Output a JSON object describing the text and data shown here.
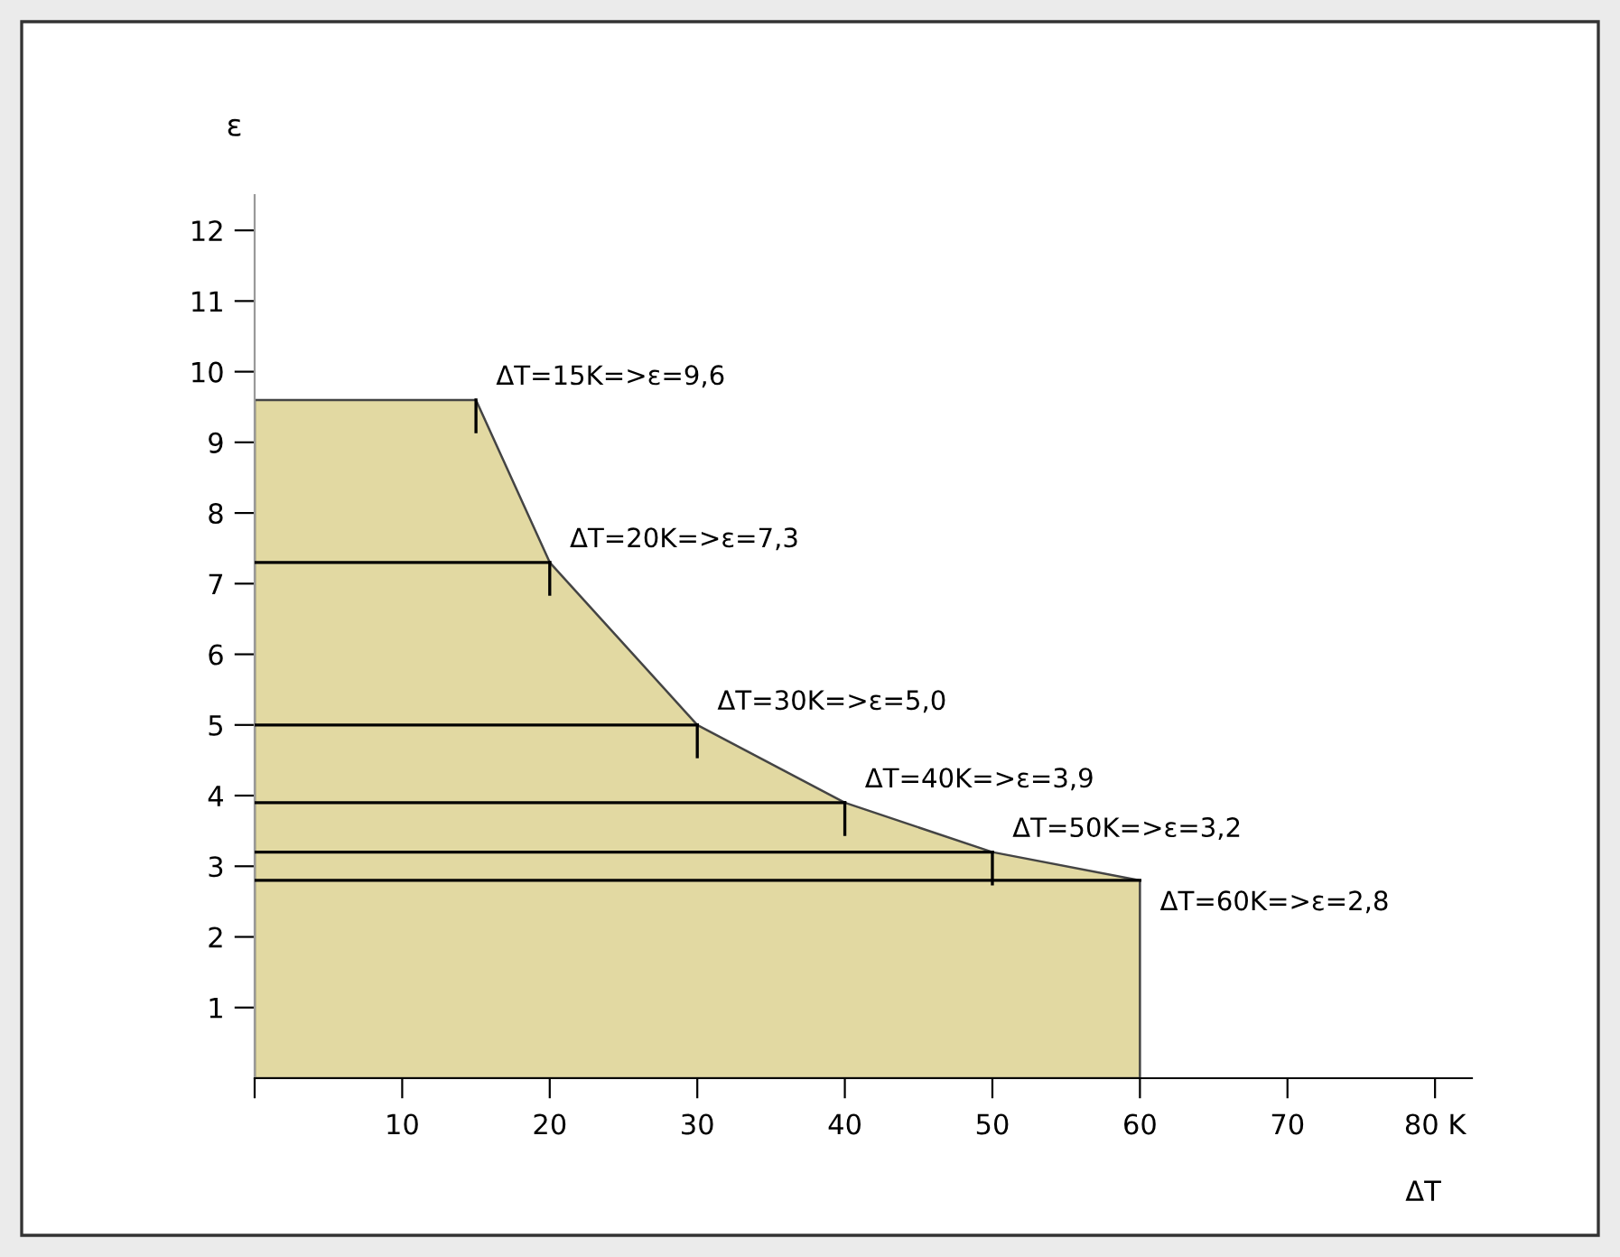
{
  "chart_data": {
    "type": "area",
    "xlabel": "ΔT",
    "ylabel": "ε",
    "x": [
      0,
      15,
      20,
      30,
      40,
      50,
      60
    ],
    "series": [
      {
        "color": "#e2d9a2",
        "values": [
          9.6,
          9.6,
          7.3,
          5.0,
          3.9,
          3.2,
          2.8
        ],
        "errors": [
          null,
          [
            9.15,
            9.6
          ],
          [
            6.85,
            7.3
          ],
          [
            4.55,
            5.0
          ],
          [
            3.45,
            3.9
          ],
          [
            2.75,
            3.2
          ],
          null
        ]
      },
      {
        "type": "line",
        "color": "#000000",
        "x": [
          0,
          20
        ],
        "values": [
          7.3,
          7.3
        ]
      },
      {
        "type": "line",
        "color": "#000000",
        "x": [
          0,
          30
        ],
        "values": [
          5.0,
          5.0
        ]
      },
      {
        "type": "line",
        "color": "#000000",
        "x": [
          0,
          40
        ],
        "values": [
          3.9,
          3.9
        ]
      },
      {
        "type": "line",
        "color": "#000000",
        "x": [
          0,
          50
        ],
        "values": [
          3.2,
          3.2
        ]
      },
      {
        "type": "line",
        "color": "#000000",
        "x": [
          0,
          60
        ],
        "values": [
          2.8,
          2.8
        ]
      }
    ],
    "xlim": [
      0,
      82.5
    ],
    "ylim": [
      0,
      12.5
    ],
    "xticks": [
      {
        "value": 0,
        "label": null
      },
      10,
      20,
      30,
      40,
      50,
      60,
      70,
      {
        "value": 80,
        "label": "80 K"
      }
    ],
    "yticks": [
      1,
      2,
      3,
      4,
      5,
      6,
      7,
      8,
      9,
      10,
      11,
      12
    ],
    "annotations": [
      {
        "text": "ΔT=15K=>ε=9,6",
        "x": 15,
        "y": 9.6
      },
      {
        "text": "ΔT=20K=>ε=7,3",
        "x": 20,
        "y": 7.3
      },
      {
        "text": "ΔT=30K=>ε=5,0",
        "x": 30,
        "y": 5.0
      },
      {
        "text": "ΔT=40K=>ε=3,9",
        "x": 40,
        "y": 3.9
      },
      {
        "text": "ΔT=50K=>ε=3,2",
        "x": 50,
        "y": 3.2
      },
      {
        "text": "ΔT=60K=>ε=2,8",
        "x": 60,
        "y": 2.8
      }
    ],
    "grid": false
  }
}
